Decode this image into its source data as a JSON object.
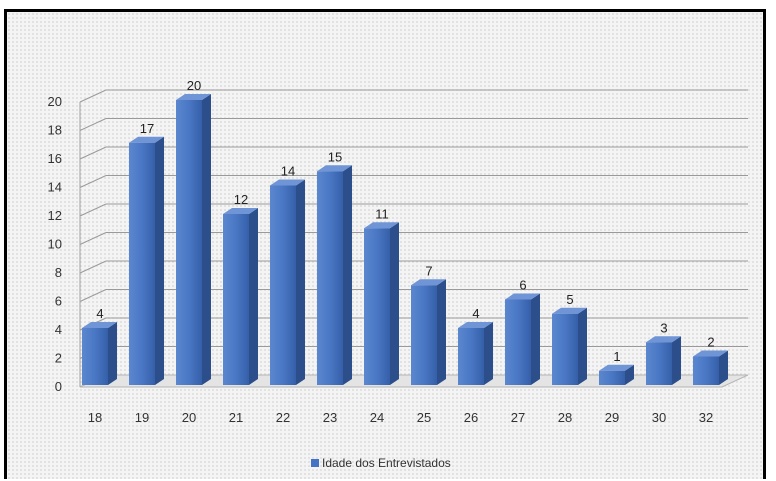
{
  "chart_data": {
    "type": "bar",
    "style": "3d-column",
    "categories": [
      "18",
      "19",
      "20",
      "21",
      "22",
      "23",
      "24",
      "25",
      "26",
      "27",
      "28",
      "29",
      "30",
      "32"
    ],
    "series": [
      {
        "name": "Idade dos Entrevistados",
        "values": [
          4,
          17,
          20,
          12,
          14,
          15,
          11,
          7,
          4,
          6,
          5,
          1,
          3,
          2
        ],
        "color": "#4472c4"
      }
    ],
    "yticks": [
      0,
      2,
      4,
      6,
      8,
      10,
      12,
      14,
      16,
      18,
      20
    ],
    "ylim": [
      0,
      20
    ],
    "grid": true,
    "data_labels": true,
    "legend_position": "bottom",
    "title": "",
    "xlabel": "",
    "ylabel": ""
  }
}
